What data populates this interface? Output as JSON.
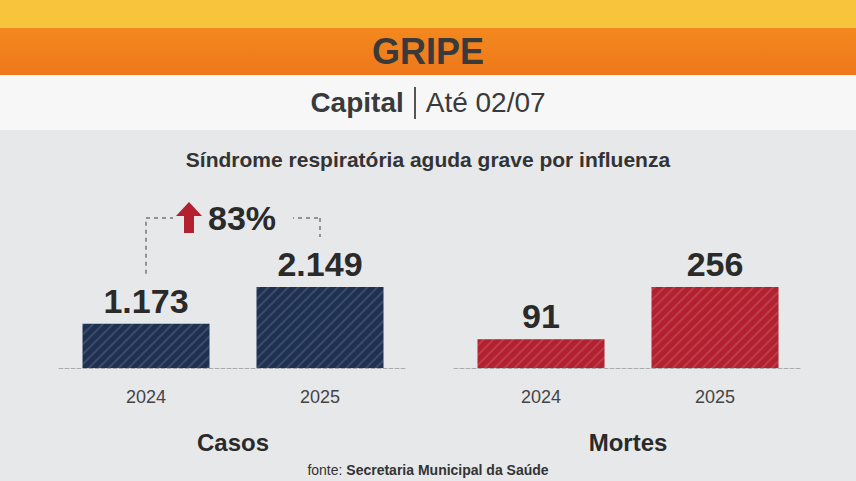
{
  "header": {
    "title": "GRIPE",
    "place": "Capital",
    "date": "Até 02/07",
    "caption": "Síndrome respiratória aguda grave por influenza",
    "source_label": "fonte:",
    "source": "Secretaria Municipal da Saúde"
  },
  "chart_data": [
    {
      "type": "bar",
      "xlabel": "Casos",
      "categories": [
        "2024",
        "2025"
      ],
      "values": [
        1173,
        2149
      ],
      "value_labels": [
        "1.173",
        "2.149"
      ],
      "color": "#1f3152",
      "ylim": [
        0,
        2149
      ],
      "data_labels": true,
      "tick_labels": "x",
      "grid": false,
      "annotation": "83%"
    },
    {
      "type": "bar",
      "xlabel": "Mortes",
      "categories": [
        "2024",
        "2025"
      ],
      "values": [
        91,
        256
      ],
      "color": "#b3202f",
      "ylim": [
        0,
        256
      ],
      "data_labels": true,
      "tick_labels": "x",
      "grid": false
    }
  ]
}
